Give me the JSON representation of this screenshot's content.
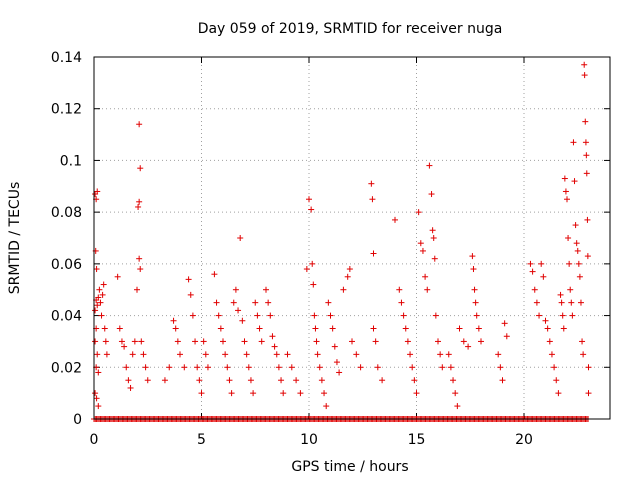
{
  "chart_data": {
    "type": "scatter",
    "title": "Day 059 of 2019, SRMTID for receiver nuga",
    "xlabel": "GPS time / hours",
    "ylabel": "SRMTID / TECUs",
    "xlim": [
      0,
      24
    ],
    "ylim": [
      0,
      0.14
    ],
    "xticks": [
      0,
      5,
      10,
      15,
      20
    ],
    "xtick_labels": [
      "0",
      "5",
      "10",
      "15",
      "20"
    ],
    "yticks": [
      0,
      0.02,
      0.04,
      0.06,
      0.08,
      0.1,
      0.12,
      0.14
    ],
    "ytick_labels": [
      "0",
      "0.02",
      "0.04",
      "0.06",
      "0.08",
      "0.1",
      "0.12",
      "0.14"
    ],
    "grid": true,
    "marker": "plus",
    "color": "#e00000",
    "series": [
      {
        "name": "SRMTID",
        "points": [
          [
            0.05,
            0.087
          ],
          [
            0.1,
            0.085
          ],
          [
            0.15,
            0.088
          ],
          [
            0.08,
            0.065
          ],
          [
            0.12,
            0.058
          ],
          [
            0.1,
            0.046
          ],
          [
            0.15,
            0.044
          ],
          [
            0.05,
            0.042
          ],
          [
            0.2,
            0.047
          ],
          [
            0.1,
            0.035
          ],
          [
            0.05,
            0.03
          ],
          [
            0.15,
            0.025
          ],
          [
            0.1,
            0.02
          ],
          [
            0.2,
            0.018
          ],
          [
            0.05,
            0.01
          ],
          [
            0.12,
            0.008
          ],
          [
            0.2,
            0.005
          ],
          [
            0.25,
            0.05
          ],
          [
            0.3,
            0.045
          ],
          [
            0.35,
            0.04
          ],
          [
            0.4,
            0.048
          ],
          [
            0.45,
            0.052
          ],
          [
            0.5,
            0.035
          ],
          [
            0.55,
            0.03
          ],
          [
            0.6,
            0.025
          ],
          [
            1.1,
            0.055
          ],
          [
            1.2,
            0.035
          ],
          [
            1.3,
            0.03
          ],
          [
            1.4,
            0.028
          ],
          [
            1.5,
            0.02
          ],
          [
            1.6,
            0.015
          ],
          [
            1.7,
            0.012
          ],
          [
            1.8,
            0.025
          ],
          [
            1.9,
            0.03
          ],
          [
            2.1,
            0.114
          ],
          [
            2.15,
            0.097
          ],
          [
            2.1,
            0.084
          ],
          [
            2.05,
            0.082
          ],
          [
            2.1,
            0.062
          ],
          [
            2.15,
            0.058
          ],
          [
            2.0,
            0.05
          ],
          [
            2.2,
            0.03
          ],
          [
            2.3,
            0.025
          ],
          [
            2.4,
            0.02
          ],
          [
            2.5,
            0.015
          ],
          [
            3.3,
            0.015
          ],
          [
            3.5,
            0.02
          ],
          [
            3.7,
            0.038
          ],
          [
            3.8,
            0.035
          ],
          [
            3.9,
            0.03
          ],
          [
            4.0,
            0.025
          ],
          [
            4.2,
            0.02
          ],
          [
            4.4,
            0.054
          ],
          [
            4.5,
            0.048
          ],
          [
            4.6,
            0.04
          ],
          [
            4.7,
            0.03
          ],
          [
            4.8,
            0.02
          ],
          [
            4.9,
            0.015
          ],
          [
            5.0,
            0.01
          ],
          [
            5.1,
            0.03
          ],
          [
            5.2,
            0.025
          ],
          [
            5.3,
            0.02
          ],
          [
            5.6,
            0.056
          ],
          [
            5.7,
            0.045
          ],
          [
            5.8,
            0.04
          ],
          [
            5.9,
            0.035
          ],
          [
            6.0,
            0.03
          ],
          [
            6.1,
            0.025
          ],
          [
            6.2,
            0.02
          ],
          [
            6.3,
            0.015
          ],
          [
            6.4,
            0.01
          ],
          [
            6.5,
            0.045
          ],
          [
            6.6,
            0.05
          ],
          [
            6.7,
            0.042
          ],
          [
            6.8,
            0.07
          ],
          [
            6.9,
            0.038
          ],
          [
            7.0,
            0.03
          ],
          [
            7.1,
            0.025
          ],
          [
            7.2,
            0.02
          ],
          [
            7.3,
            0.015
          ],
          [
            7.4,
            0.01
          ],
          [
            7.5,
            0.045
          ],
          [
            7.6,
            0.04
          ],
          [
            7.7,
            0.035
          ],
          [
            7.8,
            0.03
          ],
          [
            8.0,
            0.05
          ],
          [
            8.1,
            0.045
          ],
          [
            8.2,
            0.04
          ],
          [
            8.3,
            0.032
          ],
          [
            8.4,
            0.028
          ],
          [
            8.5,
            0.025
          ],
          [
            8.6,
            0.02
          ],
          [
            8.7,
            0.015
          ],
          [
            8.8,
            0.01
          ],
          [
            9.0,
            0.025
          ],
          [
            9.2,
            0.02
          ],
          [
            9.4,
            0.015
          ],
          [
            9.6,
            0.01
          ],
          [
            9.9,
            0.058
          ],
          [
            10.0,
            0.085
          ],
          [
            10.1,
            0.081
          ],
          [
            10.15,
            0.06
          ],
          [
            10.2,
            0.052
          ],
          [
            10.25,
            0.04
          ],
          [
            10.3,
            0.035
          ],
          [
            10.35,
            0.03
          ],
          [
            10.4,
            0.025
          ],
          [
            10.5,
            0.02
          ],
          [
            10.6,
            0.015
          ],
          [
            10.7,
            0.01
          ],
          [
            10.8,
            0.005
          ],
          [
            10.9,
            0.045
          ],
          [
            11.0,
            0.04
          ],
          [
            11.1,
            0.035
          ],
          [
            11.2,
            0.028
          ],
          [
            11.3,
            0.022
          ],
          [
            11.4,
            0.018
          ],
          [
            11.6,
            0.05
          ],
          [
            11.8,
            0.055
          ],
          [
            11.9,
            0.058
          ],
          [
            12.0,
            0.03
          ],
          [
            12.2,
            0.025
          ],
          [
            12.4,
            0.02
          ],
          [
            12.9,
            0.091
          ],
          [
            12.95,
            0.085
          ],
          [
            13.0,
            0.064
          ],
          [
            13.0,
            0.035
          ],
          [
            13.1,
            0.03
          ],
          [
            13.2,
            0.02
          ],
          [
            13.4,
            0.015
          ],
          [
            14.0,
            0.077
          ],
          [
            14.2,
            0.05
          ],
          [
            14.3,
            0.045
          ],
          [
            14.4,
            0.04
          ],
          [
            14.5,
            0.035
          ],
          [
            14.6,
            0.03
          ],
          [
            14.7,
            0.025
          ],
          [
            14.8,
            0.02
          ],
          [
            14.9,
            0.015
          ],
          [
            15.0,
            0.01
          ],
          [
            15.1,
            0.08
          ],
          [
            15.2,
            0.068
          ],
          [
            15.3,
            0.065
          ],
          [
            15.4,
            0.055
          ],
          [
            15.5,
            0.05
          ],
          [
            15.6,
            0.098
          ],
          [
            15.7,
            0.087
          ],
          [
            15.75,
            0.073
          ],
          [
            15.8,
            0.07
          ],
          [
            15.85,
            0.062
          ],
          [
            15.9,
            0.04
          ],
          [
            16.0,
            0.03
          ],
          [
            16.1,
            0.025
          ],
          [
            16.2,
            0.02
          ],
          [
            16.5,
            0.025
          ],
          [
            16.6,
            0.02
          ],
          [
            16.7,
            0.015
          ],
          [
            16.8,
            0.01
          ],
          [
            16.9,
            0.005
          ],
          [
            17.0,
            0.035
          ],
          [
            17.2,
            0.03
          ],
          [
            17.4,
            0.028
          ],
          [
            17.6,
            0.063
          ],
          [
            17.65,
            0.058
          ],
          [
            17.7,
            0.05
          ],
          [
            17.75,
            0.045
          ],
          [
            17.8,
            0.04
          ],
          [
            17.9,
            0.035
          ],
          [
            18.0,
            0.03
          ],
          [
            18.8,
            0.025
          ],
          [
            18.9,
            0.02
          ],
          [
            19.0,
            0.015
          ],
          [
            19.1,
            0.037
          ],
          [
            19.2,
            0.032
          ],
          [
            20.3,
            0.06
          ],
          [
            20.4,
            0.057
          ],
          [
            20.5,
            0.05
          ],
          [
            20.6,
            0.045
          ],
          [
            20.7,
            0.04
          ],
          [
            20.8,
            0.06
          ],
          [
            20.9,
            0.055
          ],
          [
            21.0,
            0.038
          ],
          [
            21.1,
            0.035
          ],
          [
            21.2,
            0.03
          ],
          [
            21.3,
            0.025
          ],
          [
            21.4,
            0.02
          ],
          [
            21.5,
            0.015
          ],
          [
            21.6,
            0.01
          ],
          [
            21.7,
            0.048
          ],
          [
            21.75,
            0.045
          ],
          [
            21.8,
            0.04
          ],
          [
            21.85,
            0.035
          ],
          [
            21.9,
            0.093
          ],
          [
            21.95,
            0.088
          ],
          [
            22.0,
            0.085
          ],
          [
            22.05,
            0.07
          ],
          [
            22.1,
            0.06
          ],
          [
            22.15,
            0.05
          ],
          [
            22.2,
            0.045
          ],
          [
            22.25,
            0.04
          ],
          [
            22.3,
            0.107
          ],
          [
            22.35,
            0.092
          ],
          [
            22.4,
            0.075
          ],
          [
            22.45,
            0.068
          ],
          [
            22.5,
            0.065
          ],
          [
            22.55,
            0.06
          ],
          [
            22.6,
            0.055
          ],
          [
            22.65,
            0.045
          ],
          [
            22.7,
            0.03
          ],
          [
            22.75,
            0.025
          ],
          [
            22.8,
            0.137
          ],
          [
            22.82,
            0.133
          ],
          [
            22.85,
            0.115
          ],
          [
            22.88,
            0.107
          ],
          [
            22.9,
            0.102
          ],
          [
            22.92,
            0.095
          ],
          [
            22.95,
            0.077
          ],
          [
            22.97,
            0.063
          ],
          [
            23.0,
            0.02
          ],
          [
            23.0,
            0.01
          ]
        ],
        "zero_baseline_range": [
          0,
          23
        ]
      }
    ]
  }
}
